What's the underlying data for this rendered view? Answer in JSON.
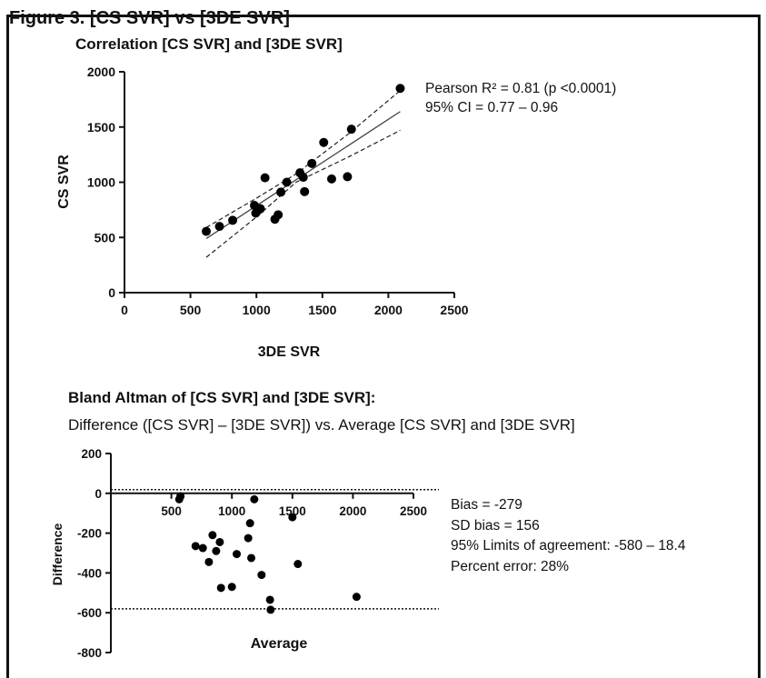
{
  "header_cut": "Figure 3. [CS SVR] vs [3DE SVR]",
  "chart_data": [
    {
      "type": "scatter",
      "title": "Correlation [CS SVR] and [3DE SVR]",
      "xlabel": "3DE SVR",
      "ylabel": "CS SVR",
      "xlim": [
        0,
        2500
      ],
      "ylim": [
        0,
        2000
      ],
      "xticks": [
        0,
        500,
        1000,
        1500,
        2000,
        2500
      ],
      "yticks": [
        0,
        500,
        1000,
        1500,
        2000
      ],
      "grid": false,
      "points": [
        {
          "x": 620,
          "y": 555
        },
        {
          "x": 720,
          "y": 600
        },
        {
          "x": 820,
          "y": 655
        },
        {
          "x": 985,
          "y": 790
        },
        {
          "x": 995,
          "y": 720
        },
        {
          "x": 1010,
          "y": 745
        },
        {
          "x": 1030,
          "y": 760
        },
        {
          "x": 1065,
          "y": 1040
        },
        {
          "x": 1140,
          "y": 665
        },
        {
          "x": 1165,
          "y": 705
        },
        {
          "x": 1185,
          "y": 910
        },
        {
          "x": 1230,
          "y": 1000
        },
        {
          "x": 1330,
          "y": 1085
        },
        {
          "x": 1355,
          "y": 1045
        },
        {
          "x": 1365,
          "y": 915
        },
        {
          "x": 1420,
          "y": 1170
        },
        {
          "x": 1510,
          "y": 1360
        },
        {
          "x": 1570,
          "y": 1030
        },
        {
          "x": 1690,
          "y": 1050
        },
        {
          "x": 1720,
          "y": 1480
        },
        {
          "x": 2090,
          "y": 1850
        }
      ],
      "regression_line": {
        "x": [
          620,
          2090
        ],
        "y": [
          490,
          1640
        ]
      },
      "ci_upper": {
        "x": [
          620,
          1000,
          1300,
          1700,
          2090
        ],
        "y": [
          590,
          855,
          1075,
          1440,
          1830
        ]
      },
      "ci_lower": {
        "x": [
          620,
          1000,
          1300,
          1700,
          2090
        ],
        "y": [
          320,
          685,
          1000,
          1230,
          1470
        ]
      },
      "annotations": [
        "Pearson R² = 0.81 (p <0.0001)",
        "95% CI = 0.77 – 0.96"
      ]
    },
    {
      "type": "scatter",
      "title": "Bland Altman of [CS SVR] and [3DE SVR]:",
      "subtitle": "Difference ([CS SVR] – [3DE SVR]) vs. Average [CS SVR] and [3DE SVR]",
      "xlabel": "Average",
      "ylabel": "Difference",
      "xlim": [
        0,
        2500
      ],
      "ylim": [
        -800,
        200
      ],
      "xticks": [
        500,
        1000,
        1500,
        2000,
        2500
      ],
      "yticks": [
        -800,
        -600,
        -400,
        -200,
        0,
        200
      ],
      "grid": false,
      "bias": -279,
      "limits_of_agreement": [
        -580,
        18.4
      ],
      "points": [
        {
          "x": 565,
          "y": -30
        },
        {
          "x": 575,
          "y": -15
        },
        {
          "x": 700,
          "y": -265
        },
        {
          "x": 760,
          "y": -275
        },
        {
          "x": 810,
          "y": -345
        },
        {
          "x": 840,
          "y": -210
        },
        {
          "x": 870,
          "y": -290
        },
        {
          "x": 900,
          "y": -245
        },
        {
          "x": 910,
          "y": -475
        },
        {
          "x": 1000,
          "y": -470
        },
        {
          "x": 1040,
          "y": -305
        },
        {
          "x": 1135,
          "y": -225
        },
        {
          "x": 1150,
          "y": -150
        },
        {
          "x": 1160,
          "y": -325
        },
        {
          "x": 1185,
          "y": -30
        },
        {
          "x": 1245,
          "y": -410
        },
        {
          "x": 1315,
          "y": -535
        },
        {
          "x": 1320,
          "y": -585
        },
        {
          "x": 1500,
          "y": -120
        },
        {
          "x": 1545,
          "y": -355
        },
        {
          "x": 2030,
          "y": -520
        }
      ],
      "annotations": [
        "Bias = -279",
        "SD bias = 156",
        "95% Limits of agreement: -580 – 18.4",
        "Percent error: 28%"
      ]
    }
  ]
}
